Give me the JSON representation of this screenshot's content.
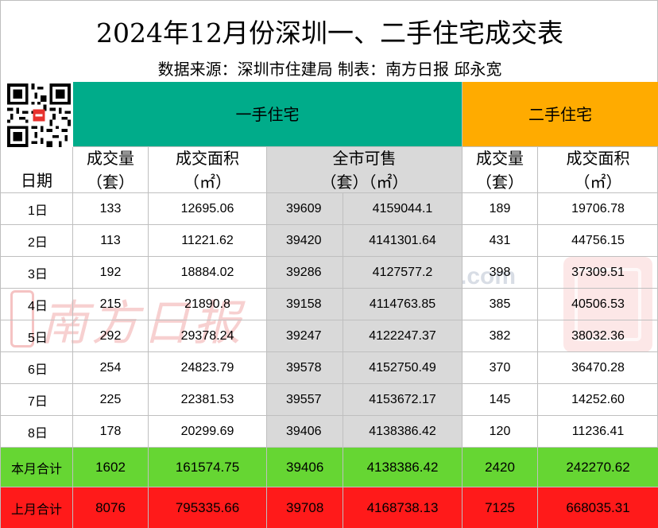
{
  "title": "2024年12月份深圳一、二手住宅成交表",
  "subtitle": "数据来源：深圳市住建局 制表：南方日报  邱永宽",
  "colors": {
    "first_hand": "#00ac8a",
    "second_hand": "#ffab00",
    "market_gray": "#d9d9d9",
    "this_month": "#66d633",
    "last_month": "#ff1a1a"
  },
  "header": {
    "first_hand": "一手住宅",
    "second_hand": "二手住宅",
    "date": "日期",
    "volume": "成交量",
    "volume_unit": "（套）",
    "area": "成交面积",
    "area_unit": "（㎡）",
    "market": "全市可售",
    "market_units": "（套）（㎡）",
    "volume2": "成交量",
    "volume2_unit": "（套）",
    "area2": "成交面积",
    "area2_unit": "（㎡）"
  },
  "rows": [
    [
      "1日",
      "133",
      "12695.06",
      "39609",
      "4159044.1",
      "189",
      "19706.78"
    ],
    [
      "2日",
      "113",
      "11221.62",
      "39420",
      "4141301.64",
      "431",
      "44756.15"
    ],
    [
      "3日",
      "192",
      "18884.02",
      "39286",
      "4127577.2",
      "398",
      "37309.51"
    ],
    [
      "4日",
      "215",
      "21890.8",
      "39158",
      "4114763.85",
      "385",
      "40506.53"
    ],
    [
      "5日",
      "292",
      "29378.24",
      "39247",
      "4122247.37",
      "382",
      "38032.36"
    ],
    [
      "6日",
      "254",
      "24823.79",
      "39578",
      "4152750.49",
      "370",
      "36470.28"
    ],
    [
      "7日",
      "225",
      "22381.53",
      "39557",
      "4153672.17",
      "145",
      "14252.60"
    ],
    [
      "8日",
      "178",
      "20299.69",
      "39406",
      "4138386.42",
      "120",
      "11236.41"
    ]
  ],
  "totals": [
    [
      "本月合计",
      "1602",
      "161574.75",
      "39406",
      "4138386.42",
      "2420",
      "242270.62"
    ],
    [
      "上月合计",
      "8076",
      "795335.66",
      "39708",
      "4168738.13",
      "7125",
      "668035.31"
    ]
  ],
  "watermarks": {
    "nanfang": "南方日报",
    "southcn": "Southcn.com",
    "southcn_cn": "南方网"
  },
  "icons": {
    "qr": "qr-code-icon"
  }
}
